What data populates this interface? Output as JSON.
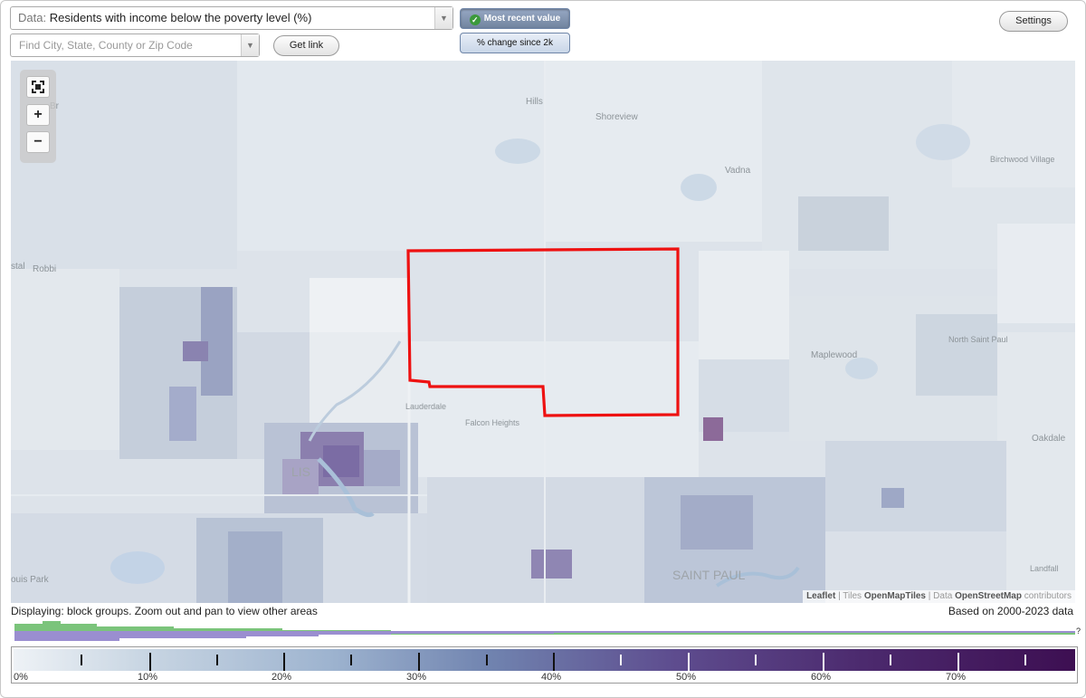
{
  "toolbar": {
    "data_prefix": "Data:",
    "data_value": "Residents with income below the poverty level (%)",
    "search_placeholder": "Find City, State, County or Zip Code",
    "get_link_label": "Get link",
    "mode_recent_label": "Most recent value",
    "mode_change_label": "% change since 2k",
    "settings_label": "Settings"
  },
  "map": {
    "zoom_in": "+",
    "zoom_out": "−",
    "labels": {
      "hills": "Hills",
      "shoreview": "Shoreview",
      "vadnais": "Vadna",
      "birchwood": "Birchwood Village",
      "robbinsdale": "Robbi",
      "crystal": "stal",
      "maplewood": "Maplewood",
      "north_saint_paul": "North Saint Paul",
      "lauderdale": "Lauderdale",
      "falcon_heights": "Falcon Heights",
      "minneapolis": "LIS",
      "oakdale": "Oakdale",
      "saint_paul": "SAINT PAUL",
      "landfall": "Landfall",
      "louis_park": "ouis Park",
      "br": "Br"
    },
    "attribution": {
      "leaflet": "Leaflet",
      "tiles_prefix": "Tiles",
      "tiles": "OpenMapTiles",
      "data_prefix": "Data",
      "osm": "OpenStreetMap",
      "suffix": "contributors"
    }
  },
  "status": {
    "displaying": "Displaying: block groups. Zoom out and pan to view other areas",
    "based_on": "Based on 2000-2023 data",
    "unknown_marker": "?"
  },
  "legend": {
    "labels": [
      "0%",
      "10%",
      "20%",
      "30%",
      "40%",
      "50%",
      "60%",
      "70%"
    ],
    "colors": {
      "low": "#eef2f6",
      "mid": "#7083af",
      "high": "#3d0f52",
      "selection_outline": "#ee1111",
      "histogram_green": "#7bc47b",
      "histogram_purple": "#9a8ed0"
    }
  }
}
